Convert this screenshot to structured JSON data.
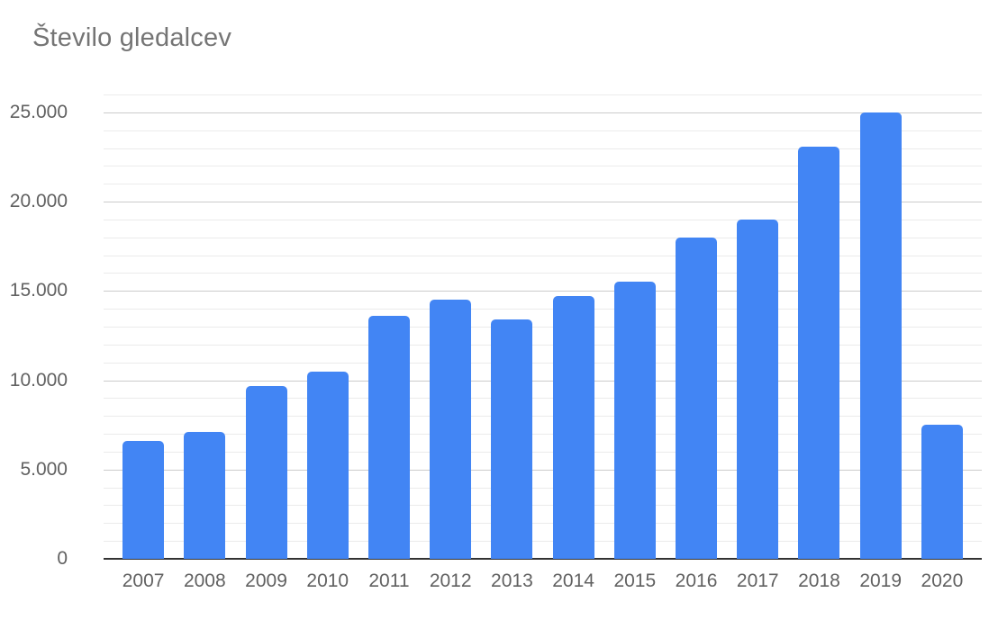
{
  "title": "Število gledalcev",
  "chart_data": {
    "type": "bar",
    "title": "Število gledalcev",
    "categories": [
      "2007",
      "2008",
      "2009",
      "2010",
      "2011",
      "2012",
      "2013",
      "2014",
      "2015",
      "2016",
      "2017",
      "2018",
      "2019",
      "2020"
    ],
    "values": [
      6600,
      7100,
      9700,
      10500,
      13600,
      14500,
      13400,
      14700,
      15500,
      18000,
      19000,
      23100,
      25000,
      7500
    ],
    "xlabel": "",
    "ylabel": "",
    "ylim": [
      0,
      26000
    ],
    "y_major_tick_interval": 5000,
    "y_minor_tick_interval": 1000,
    "y_tick_labels": [
      "0",
      "5.000",
      "10.000",
      "15.000",
      "20.000",
      "25.000"
    ],
    "y_tick_values": [
      0,
      5000,
      10000,
      15000,
      20000,
      25000
    ],
    "grid": true,
    "legend_position": "none"
  },
  "colors": {
    "bar": "#4285f4",
    "title_text": "#757575",
    "axis_text": "#616161",
    "baseline": "#333333",
    "major_gridline": "#cccccc",
    "minor_gridline": "#ebebeb",
    "background": "#ffffff"
  }
}
